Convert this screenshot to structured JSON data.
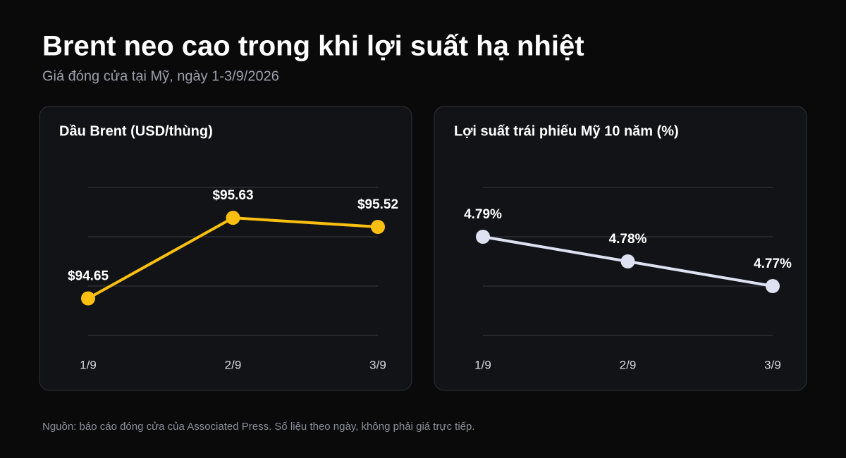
{
  "title": "Brent neo cao trong khi lợi suất hạ nhiệt",
  "subtitle": "Giá đóng cửa tại Mỹ, ngày 1-3/9/2026",
  "source": "Nguồn: báo cáo đóng cửa của Associated Press. Số liệu theo ngày, không phải giá trực tiếp.",
  "chart_data": [
    {
      "type": "line",
      "title": "Dầu Brent (USD/thùng)",
      "categories": [
        "1/9",
        "2/9",
        "3/9"
      ],
      "values": [
        94.65,
        95.63,
        95.52
      ],
      "value_labels": [
        "$94.65",
        "$95.63",
        "$95.52"
      ],
      "color": "#fbbf0f",
      "ylim": [
        94.2,
        96.0
      ],
      "yticks": [
        94.2,
        94.8,
        95.4,
        96.0
      ],
      "grid": true
    },
    {
      "type": "line",
      "title": "Lợi suất trái phiếu Mỹ 10 năm (%)",
      "categories": [
        "1/9",
        "2/9",
        "3/9"
      ],
      "values": [
        4.79,
        4.78,
        4.77
      ],
      "value_labels": [
        "4.79%",
        "4.78%",
        "4.77%"
      ],
      "color": "#dde1f2",
      "ylim": [
        4.75,
        4.81
      ],
      "yticks": [
        4.75,
        4.77,
        4.79,
        4.81
      ],
      "grid": true
    }
  ]
}
